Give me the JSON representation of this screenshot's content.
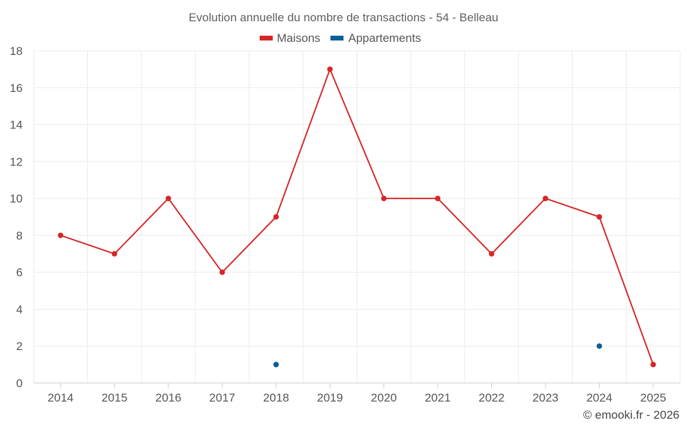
{
  "chart_data": {
    "type": "line",
    "title": "Evolution annuelle du nombre de transactions - 54 - Belleau",
    "categories": [
      "2014",
      "2015",
      "2016",
      "2017",
      "2018",
      "2019",
      "2020",
      "2021",
      "2022",
      "2023",
      "2024",
      "2025"
    ],
    "series": [
      {
        "name": "Maisons",
        "color": "#d62728",
        "values": [
          8,
          7,
          10,
          6,
          9,
          17,
          10,
          10,
          7,
          10,
          9,
          1
        ]
      },
      {
        "name": "Appartements",
        "color": "#0a5f96",
        "values": [
          null,
          null,
          null,
          null,
          1,
          null,
          null,
          null,
          null,
          null,
          2,
          null
        ]
      }
    ],
    "yticks": [
      "0",
      "2",
      "4",
      "6",
      "8",
      "10",
      "12",
      "14",
      "16",
      "18"
    ],
    "ylim": [
      0,
      18
    ],
    "xlabel": "",
    "ylabel": "",
    "grid": true,
    "legend_position": "top-center"
  },
  "credit": "© emooki.fr - 2026"
}
